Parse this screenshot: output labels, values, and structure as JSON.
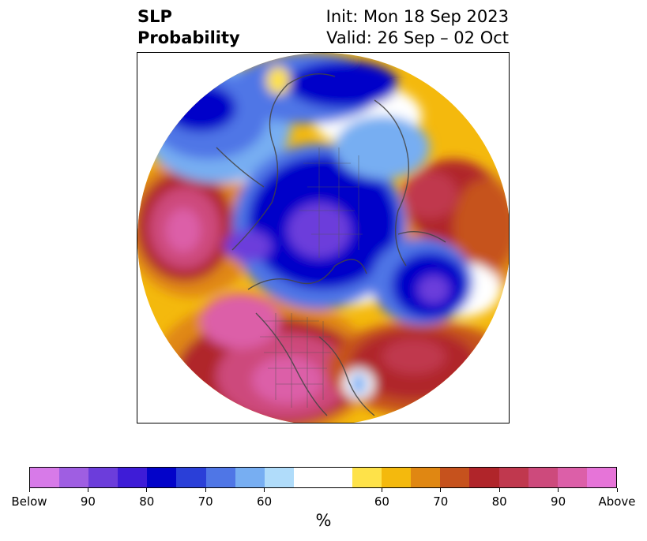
{
  "title": {
    "left_line1": "SLP",
    "left_line2": "Probability",
    "right_line1": "Init: Mon 18 Sep 2023",
    "right_line2": "Valid: 26 Sep – 02 Oct"
  },
  "colorbar": {
    "unit": "%",
    "colors": [
      "#d77ae8",
      "#9f5ee2",
      "#6c3ddb",
      "#3e1cd7",
      "#0303c9",
      "#2a3fd8",
      "#4f76e6",
      "#77aef2",
      "#b0dcfa",
      "#ffffff",
      "#ffffff",
      "#fee249",
      "#f4b90d",
      "#e08712",
      "#c6521d",
      "#b0252a",
      "#c0384e",
      "#cd4a7c",
      "#dc5fa8",
      "#e674d8"
    ],
    "tick_labels": [
      "Below",
      "90",
      "80",
      "70",
      "60",
      "60",
      "70",
      "80",
      "90",
      "Above"
    ]
  },
  "map": {
    "projection": "north-polar-stereographic",
    "variable": "sea-level-pressure probability"
  }
}
